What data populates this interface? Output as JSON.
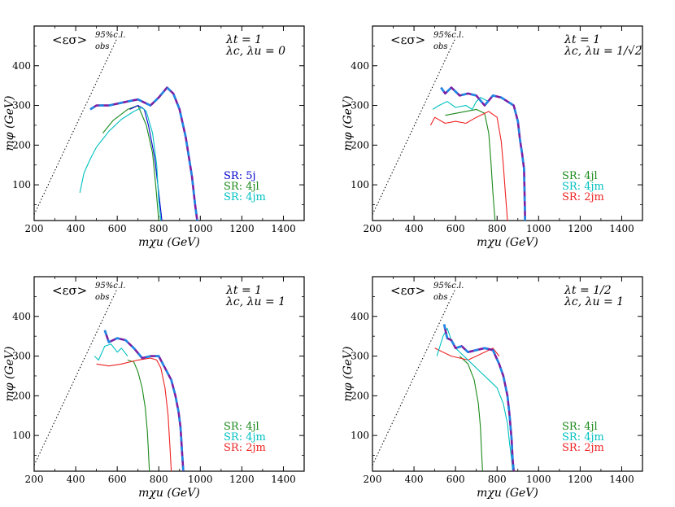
{
  "colors": {
    "frame": "#000000",
    "sr_5j": "#0000cc",
    "sr_4jl": "#1a8a1a",
    "sr_4jm": "#00c0c0",
    "sr_2jm": "#ee2222",
    "combined_a": "#7b1fa2",
    "combined_b": "#1e88e5"
  },
  "chart_data": [
    {
      "type": "line",
      "panel": "top-left",
      "header": "<εσ>",
      "header_sup": "95%c.l.",
      "header_sub": "obs",
      "couplings": [
        "λt = 1",
        "λc, λu = 0"
      ],
      "xlabel": "mχu (GeV)",
      "ylabel": "mφ (GeV)",
      "xlim": [
        200,
        1500
      ],
      "ylim": [
        10,
        500
      ],
      "xticks": [
        "200",
        "400",
        "600",
        "800",
        "1000",
        "1200",
        "1400"
      ],
      "yticks": [
        "100",
        "200",
        "300",
        "400"
      ],
      "legend": [
        {
          "label": "SR: 5j",
          "color": "#0000cc"
        },
        {
          "label": "SR: 4jl",
          "color": "#1a8a1a"
        },
        {
          "label": "SR: 4jm",
          "color": "#00c0c0"
        }
      ],
      "diagonal": {
        "x": [
          200,
          600
        ],
        "y": [
          25,
          470
        ]
      },
      "series": [
        {
          "color": "#1a8a1a",
          "dashed": false,
          "x": [
            530,
            580,
            650,
            700,
            740,
            770,
            785,
            800
          ],
          "y": [
            230,
            262,
            290,
            300,
            250,
            180,
            100,
            10
          ]
        },
        {
          "color": "#0000cc",
          "dashed": false,
          "x": [
            660,
            700,
            730,
            750,
            780,
            800,
            815
          ],
          "y": [
            290,
            300,
            290,
            250,
            170,
            80,
            10
          ]
        },
        {
          "color": "#00c0c0",
          "dashed": false,
          "x": [
            420,
            440,
            470,
            500,
            560,
            620,
            680,
            720,
            740,
            770,
            790,
            800,
            810
          ],
          "y": [
            80,
            130,
            165,
            195,
            235,
            265,
            285,
            295,
            285,
            230,
            150,
            60,
            10
          ]
        },
        {
          "color": "#7b1fa2",
          "dashed": true,
          "x": [
            470,
            500,
            560,
            650,
            700,
            760,
            800,
            840,
            870,
            900,
            930,
            960,
            975,
            985
          ],
          "y": [
            290,
            300,
            300,
            310,
            315,
            300,
            320,
            345,
            330,
            290,
            220,
            120,
            50,
            10
          ]
        }
      ]
    },
    {
      "type": "line",
      "panel": "top-right",
      "header": "<εσ>",
      "header_sup": "95%c.l.",
      "header_sub": "obs",
      "couplings": [
        "λt = 1",
        "λc, λu = 1/√2"
      ],
      "xlabel": "mχu (GeV)",
      "ylabel": "mφ (GeV)",
      "xlim": [
        200,
        1500
      ],
      "ylim": [
        10,
        500
      ],
      "xticks": [
        "200",
        "400",
        "600",
        "800",
        "1000",
        "1200",
        "1400"
      ],
      "yticks": [
        "100",
        "200",
        "300",
        "400"
      ],
      "legend": [
        {
          "label": "SR: 4jl",
          "color": "#1a8a1a"
        },
        {
          "label": "SR: 4jm",
          "color": "#00c0c0"
        },
        {
          "label": "SR: 2jm",
          "color": "#ee2222"
        }
      ],
      "diagonal": {
        "x": [
          200,
          600
        ],
        "y": [
          25,
          470
        ]
      },
      "series": [
        {
          "color": "#1a8a1a",
          "dashed": false,
          "x": [
            550,
            600,
            700,
            740,
            760,
            770,
            780,
            790
          ],
          "y": [
            275,
            280,
            290,
            280,
            230,
            160,
            80,
            10
          ]
        },
        {
          "color": "#ee2222",
          "dashed": false,
          "x": [
            480,
            500,
            550,
            600,
            650,
            700,
            760,
            800,
            820,
            830,
            840,
            850
          ],
          "y": [
            250,
            270,
            255,
            260,
            255,
            270,
            285,
            270,
            210,
            150,
            80,
            10
          ]
        },
        {
          "color": "#00c0c0",
          "dashed": false,
          "x": [
            490,
            520,
            560,
            600,
            650,
            680,
            700,
            720,
            760
          ],
          "y": [
            290,
            300,
            310,
            295,
            300,
            290,
            310,
            320,
            310
          ]
        },
        {
          "color": "#7b1fa2",
          "dashed": true,
          "x": [
            530,
            550,
            580,
            620,
            660,
            700,
            740,
            780,
            820,
            850,
            880,
            900,
            910,
            920,
            930,
            935
          ],
          "y": [
            345,
            330,
            345,
            325,
            330,
            325,
            300,
            325,
            320,
            310,
            300,
            260,
            215,
            180,
            140,
            10
          ]
        }
      ]
    },
    {
      "type": "line",
      "panel": "bottom-left",
      "header": "<εσ>",
      "header_sup": "95%c.l.",
      "header_sub": "obs",
      "couplings": [
        "λt = 1",
        "λc, λu = 1"
      ],
      "xlabel": "mχu (GeV)",
      "ylabel": "mφ (GeV)",
      "xlim": [
        200,
        1500
      ],
      "ylim": [
        10,
        500
      ],
      "xticks": [
        "200",
        "400",
        "600",
        "800",
        "1000",
        "1200",
        "1400"
      ],
      "yticks": [
        "100",
        "200",
        "300",
        "400"
      ],
      "legend": [
        {
          "label": "SR: 4jl",
          "color": "#1a8a1a"
        },
        {
          "label": "SR: 4jm",
          "color": "#00c0c0"
        },
        {
          "label": "SR: 2jm",
          "color": "#ee2222"
        }
      ],
      "diagonal": {
        "x": [
          200,
          600
        ],
        "y": [
          25,
          470
        ]
      },
      "series": [
        {
          "color": "#1a8a1a",
          "dashed": false,
          "x": [
            650,
            680,
            700,
            720,
            735,
            745,
            750,
            755
          ],
          "y": [
            290,
            285,
            260,
            220,
            170,
            110,
            60,
            10
          ]
        },
        {
          "color": "#ee2222",
          "dashed": false,
          "x": [
            500,
            560,
            620,
            700,
            760,
            790,
            810,
            830,
            845,
            855,
            860
          ],
          "y": [
            280,
            275,
            280,
            290,
            295,
            290,
            270,
            220,
            150,
            60,
            10
          ]
        },
        {
          "color": "#00c0c0",
          "dashed": false,
          "x": [
            490,
            510,
            540,
            570,
            600,
            620,
            650
          ],
          "y": [
            300,
            290,
            325,
            330,
            310,
            320,
            300
          ]
        },
        {
          "color": "#7b1fa2",
          "dashed": true,
          "x": [
            540,
            560,
            600,
            640,
            680,
            720,
            760,
            800,
            830,
            860,
            880,
            895,
            905,
            912,
            918
          ],
          "y": [
            365,
            335,
            345,
            340,
            320,
            295,
            300,
            300,
            270,
            240,
            200,
            160,
            120,
            60,
            10
          ]
        }
      ]
    },
    {
      "type": "line",
      "panel": "bottom-right",
      "header": "<εσ>",
      "header_sup": "95%c.l.",
      "header_sub": "obs",
      "couplings": [
        "λt = 1/2",
        "λc, λu = 1"
      ],
      "xlabel": "mχu (GeV)",
      "ylabel": "mφ (GeV)",
      "xlim": [
        200,
        1500
      ],
      "ylim": [
        10,
        500
      ],
      "xticks": [
        "200",
        "400",
        "600",
        "800",
        "1000",
        "1200",
        "1400"
      ],
      "yticks": [
        "100",
        "200",
        "300",
        "400"
      ],
      "legend": [
        {
          "label": "SR: 4jl",
          "color": "#1a8a1a"
        },
        {
          "label": "SR: 4jm",
          "color": "#00c0c0"
        },
        {
          "label": "SR: 2jm",
          "color": "#ee2222"
        }
      ],
      "diagonal": {
        "x": [
          200,
          600
        ],
        "y": [
          25,
          470
        ]
      },
      "series": [
        {
          "color": "#1a8a1a",
          "dashed": false,
          "x": [
            620,
            660,
            690,
            710,
            720,
            725,
            730
          ],
          "y": [
            300,
            280,
            240,
            180,
            120,
            60,
            10
          ]
        },
        {
          "color": "#ee2222",
          "dashed": false,
          "x": [
            500,
            540,
            580,
            620,
            660,
            700,
            740,
            780,
            810
          ],
          "y": [
            320,
            310,
            300,
            295,
            290,
            300,
            310,
            320,
            300
          ]
        },
        {
          "color": "#00c0c0",
          "dashed": false,
          "x": [
            510,
            540,
            560,
            580,
            600,
            640,
            680,
            720,
            760,
            800,
            830,
            850,
            860,
            870,
            875
          ],
          "y": [
            300,
            350,
            370,
            340,
            320,
            300,
            280,
            260,
            240,
            220,
            180,
            130,
            80,
            40,
            10
          ]
        },
        {
          "color": "#7b1fa2",
          "dashed": true,
          "x": [
            545,
            560,
            580,
            600,
            630,
            660,
            700,
            740,
            780,
            810,
            830,
            850,
            860,
            870,
            875,
            880
          ],
          "y": [
            380,
            345,
            340,
            320,
            325,
            310,
            315,
            320,
            315,
            280,
            250,
            200,
            150,
            90,
            40,
            10
          ]
        }
      ]
    }
  ]
}
